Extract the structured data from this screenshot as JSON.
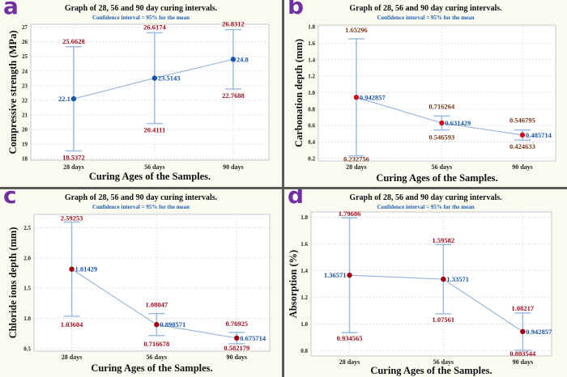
{
  "chart_data": [
    {
      "type": "line",
      "panel_label": "a",
      "title": "Graph of 28, 56 and 90 day curing intervals.",
      "subtitle": "Confidence interval = 95% for the mean",
      "xlabel": "Curing Ages of the Samples.",
      "ylabel": "Compressive strength (MPa)",
      "categories": [
        "28 days",
        "56 days",
        "90 days"
      ],
      "means": [
        22.1,
        23.5143,
        24.8
      ],
      "mean_labels": [
        "22.1",
        "23.5143",
        "24.8"
      ],
      "upper": [
        25.6628,
        26.6174,
        26.8312
      ],
      "upper_labels": [
        "25.6628",
        "26.6174",
        "26.8312"
      ],
      "lower": [
        18.5372,
        20.4111,
        22.7688
      ],
      "lower_labels": [
        "18.5372",
        "20.4111",
        "22.7688"
      ],
      "ylim": [
        17.9,
        27.2
      ],
      "yticks": [
        18,
        19,
        20,
        21,
        22,
        23,
        24,
        25,
        26,
        27
      ],
      "ytick_labels": [
        "18",
        "19",
        "20",
        "21",
        "22",
        "23",
        "24",
        "25",
        "26",
        "27"
      ],
      "grid": true,
      "colors": {
        "point": "#1a56a8",
        "mean_label": "#1a56a8",
        "ci_label": "#a01020",
        "line": "#8fb4dc",
        "bar": "#9dbde0"
      }
    },
    {
      "type": "line",
      "panel_label": "b",
      "title": "Graph of 28, 56 and 90 day curing intervals.",
      "subtitle": "Confidence interval = 95% for the mean",
      "xlabel": "Curing Ages of the Samples.",
      "ylabel": "Carbonation depth (mm)",
      "categories": [
        "28 days",
        "56 days",
        "90 days"
      ],
      "means": [
        0.942857,
        0.631429,
        0.485714
      ],
      "mean_labels": [
        "0.942857",
        "0.631429",
        "0.485714"
      ],
      "upper": [
        1.65296,
        0.716264,
        0.546795
      ],
      "upper_labels": [
        "1.65296",
        "0.716264",
        "0.546795"
      ],
      "lower": [
        0.232756,
        0.546593,
        0.424633
      ],
      "lower_labels": [
        "0.232756",
        "0.546593",
        "0.424633"
      ],
      "ylim": [
        0.17,
        1.82
      ],
      "yticks": [
        0.2,
        0.4,
        0.6,
        0.8,
        1.0,
        1.2,
        1.4,
        1.6,
        1.8
      ],
      "ytick_labels": [
        "0.2",
        "0.4",
        "0.6",
        "0.8",
        "1.0",
        "1.2",
        "1.4",
        "1.6",
        "1.8"
      ],
      "grid": true,
      "colors": {
        "point": "#d0101a",
        "mean_label": "#1a56a8",
        "ci_label": "#7a3a1a",
        "line": "#8fb4dc",
        "bar": "#9dbde0"
      }
    },
    {
      "type": "line",
      "panel_label": "c",
      "title": "Graph of 28, 56 and 90 day curing intervals.",
      "subtitle": "Confidence interval = 95% for the mean",
      "xlabel": "Curing Ages of the Samples.",
      "ylabel": "Chloride ions depth (mm)",
      "categories": [
        "28 days",
        "56 days",
        "90 days"
      ],
      "means": [
        1.81429,
        0.898571,
        0.675714
      ],
      "mean_labels": [
        "1.81429",
        "0.898571",
        "0.675714"
      ],
      "upper": [
        2.59253,
        1.08047,
        0.76925
      ],
      "upper_labels": [
        "2.59253",
        "1.08047",
        "0.76925"
      ],
      "lower": [
        1.03604,
        0.716678,
        0.582179
      ],
      "lower_labels": [
        "1.03604",
        "0.716678",
        "0.582179"
      ],
      "ylim": [
        0.46,
        2.72
      ],
      "yticks": [
        0.5,
        1.0,
        1.5,
        2.0,
        2.5
      ],
      "ytick_labels": [
        "0.5",
        "1.0",
        "1.5",
        "2.0",
        "2.5"
      ],
      "grid": true,
      "colors": {
        "point": "#a00010",
        "mean_label": "#1a56a8",
        "ci_label": "#a01020",
        "line": "#8fb4dc",
        "bar": "#9dbde0"
      }
    },
    {
      "type": "line",
      "panel_label": "d",
      "title": "Graph of 28, 56 and 90 day curing intervals.",
      "subtitle": "Confidence interval = 95% for the mean",
      "xlabel": "Curing Ages of the Samples.",
      "ylabel": "Absorption (%)",
      "categories": [
        "28 days",
        "56 days",
        "90 days"
      ],
      "means": [
        1.36571,
        1.33571,
        0.942857
      ],
      "mean_labels": [
        "1.36571",
        "1.33571",
        "0.942857"
      ],
      "upper": [
        1.79686,
        1.59582,
        1.08217
      ],
      "upper_labels": [
        "1.79686",
        "1.59582",
        "1.08217"
      ],
      "lower": [
        0.934565,
        1.07561,
        0.803544
      ],
      "lower_labels": [
        "0.934565",
        "1.07561",
        "0.803544"
      ],
      "ylim": [
        0.76,
        1.84
      ],
      "yticks": [
        0.8,
        1.0,
        1.2,
        1.4,
        1.6,
        1.8
      ],
      "ytick_labels": [
        "0.8",
        "1.0",
        "1.2",
        "1.4",
        "1.6",
        "1.8"
      ],
      "grid": true,
      "colors": {
        "point": "#a00010",
        "mean_label": "#1a56a8",
        "ci_label": "#a01020",
        "line": "#8fb4dc",
        "bar": "#9dbde0"
      }
    }
  ]
}
